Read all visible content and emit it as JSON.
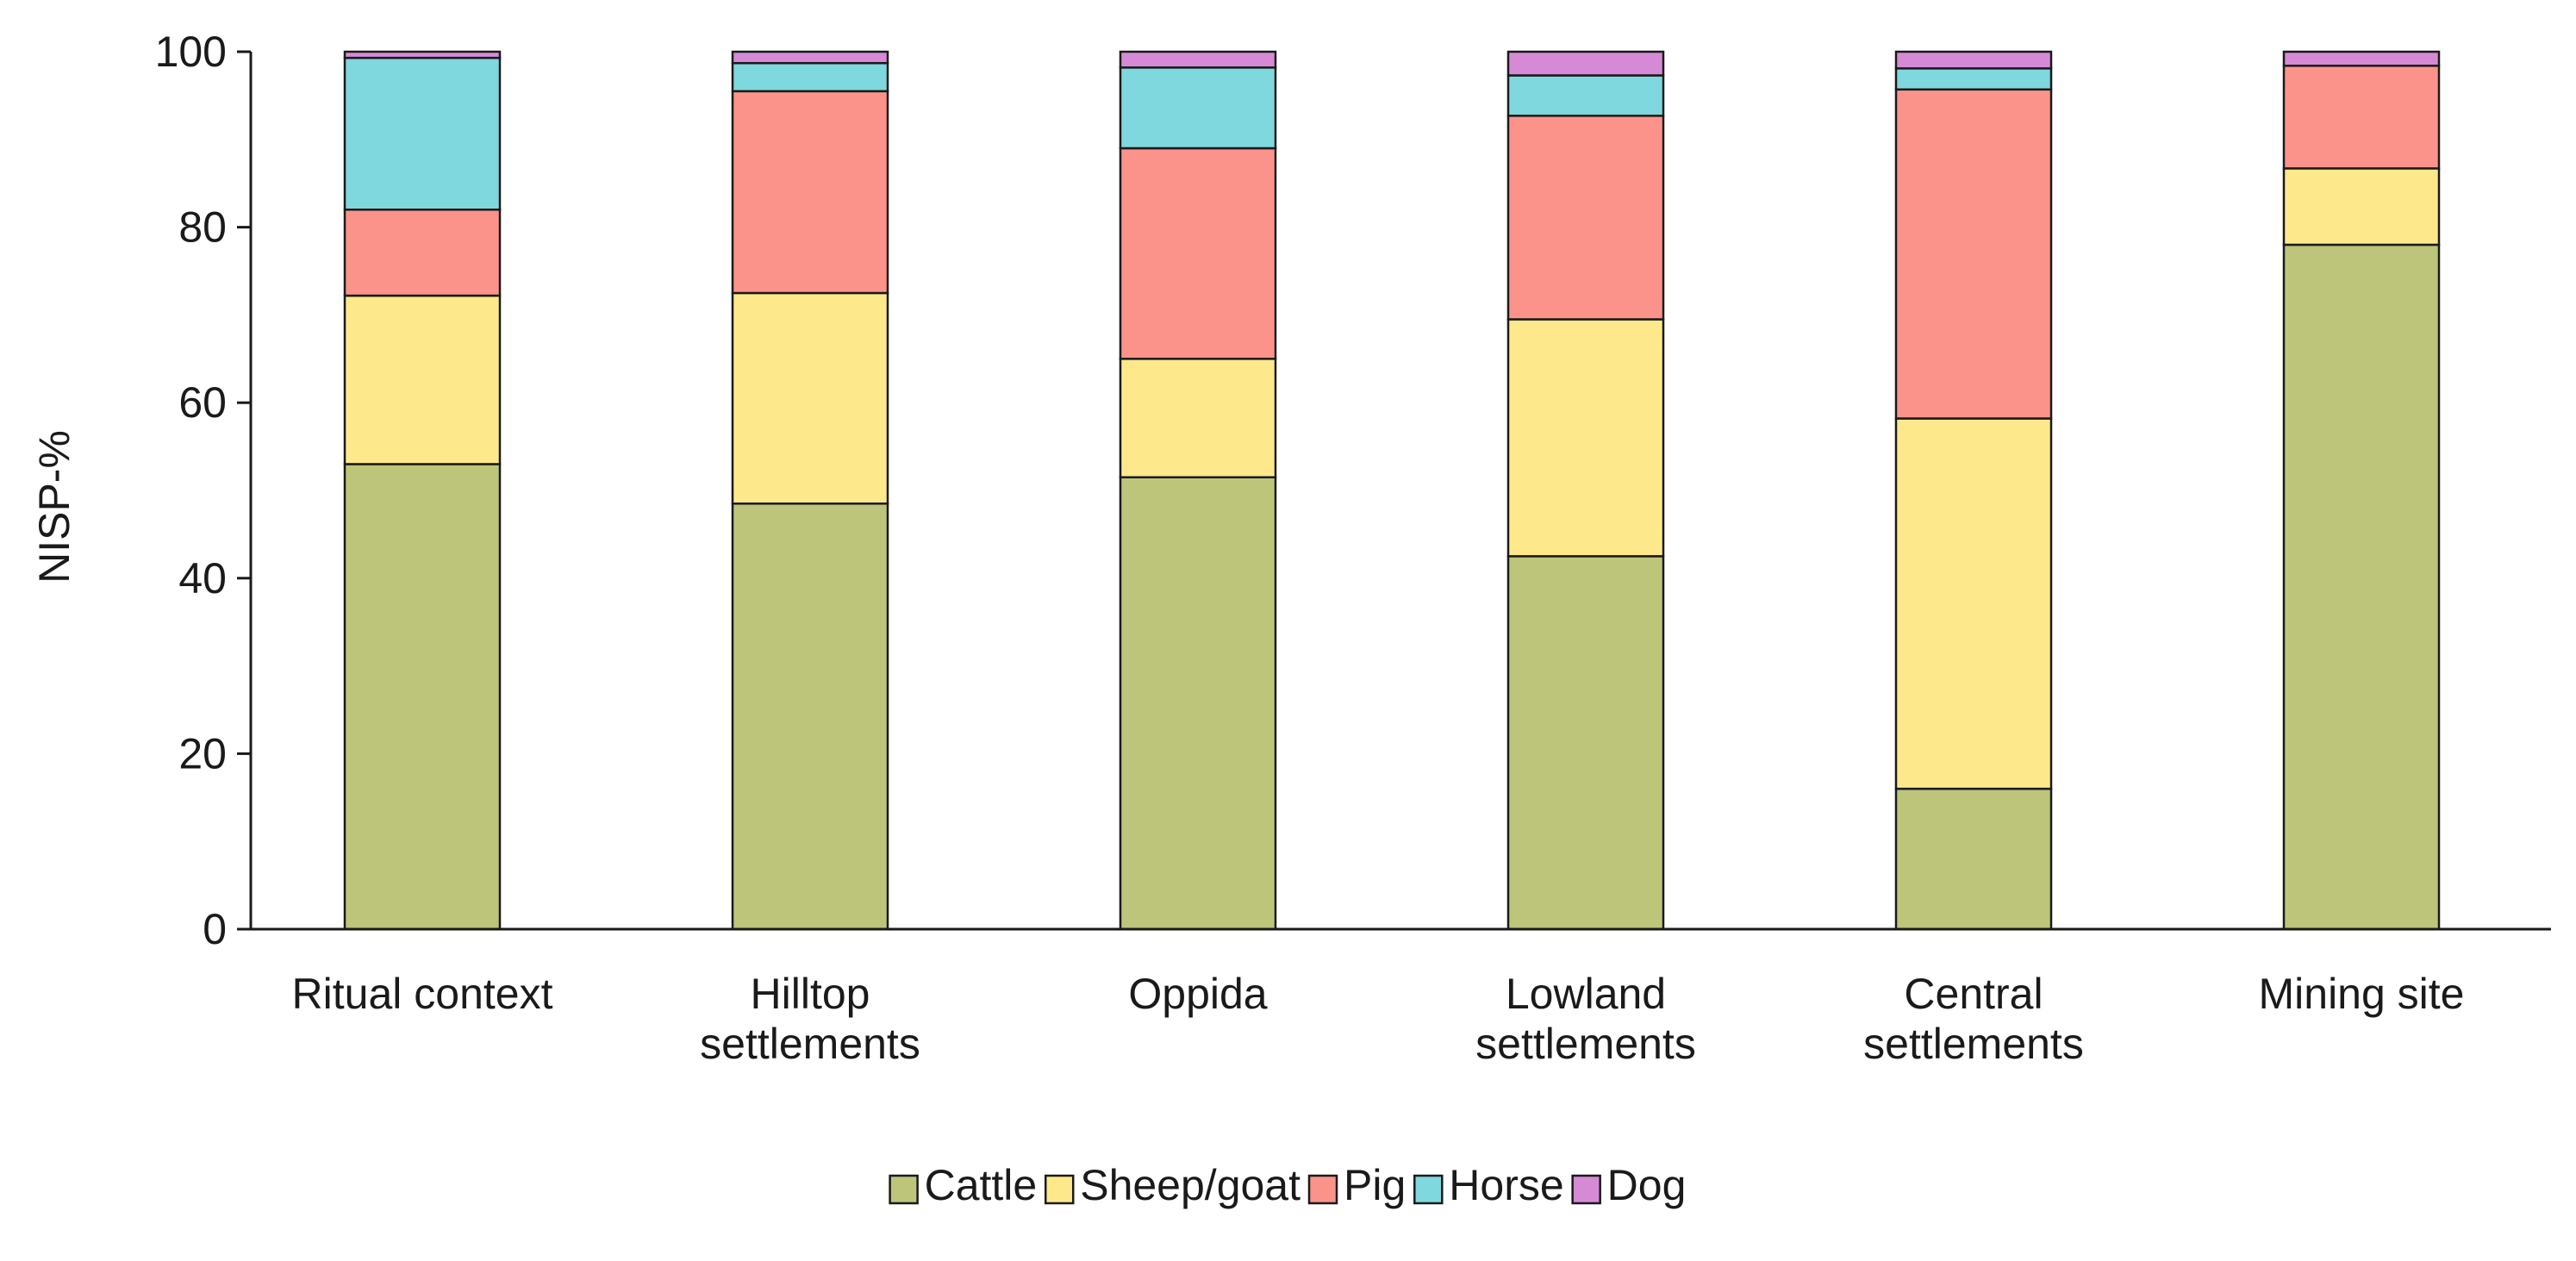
{
  "chart_data": {
    "type": "bar",
    "stacked": true,
    "title": "",
    "xlabel": "",
    "ylabel": "NISP-%",
    "ylim": [
      0,
      100
    ],
    "yticks": [
      0,
      20,
      40,
      60,
      80,
      100
    ],
    "grid": false,
    "legend_position": "bottom",
    "categories": [
      [
        "Ritual context"
      ],
      [
        "Hilltop",
        "settlements"
      ],
      [
        "Oppida"
      ],
      [
        "Lowland",
        "settlements"
      ],
      [
        "Central",
        "settlements"
      ],
      [
        "Mining site"
      ]
    ],
    "series": [
      {
        "name": "Cattle",
        "color": "#bdc57a",
        "values": [
          53,
          48.5,
          51.5,
          42.5,
          16,
          78
        ]
      },
      {
        "name": "Sheep/goat",
        "color": "#fde98b",
        "values": [
          19.2,
          24,
          13.5,
          27,
          42.2,
          8.7
        ]
      },
      {
        "name": "Pig",
        "color": "#fb938b",
        "values": [
          9.8,
          23,
          24,
          23.2,
          37.5,
          11.7
        ]
      },
      {
        "name": "Horse",
        "color": "#7fd8de",
        "values": [
          17.3,
          3.2,
          9.2,
          4.6,
          2.4,
          0
        ]
      },
      {
        "name": "Dog",
        "color": "#d68ad6",
        "values": [
          0.7,
          1.3,
          1.8,
          2.7,
          1.9,
          1.6
        ]
      }
    ]
  }
}
